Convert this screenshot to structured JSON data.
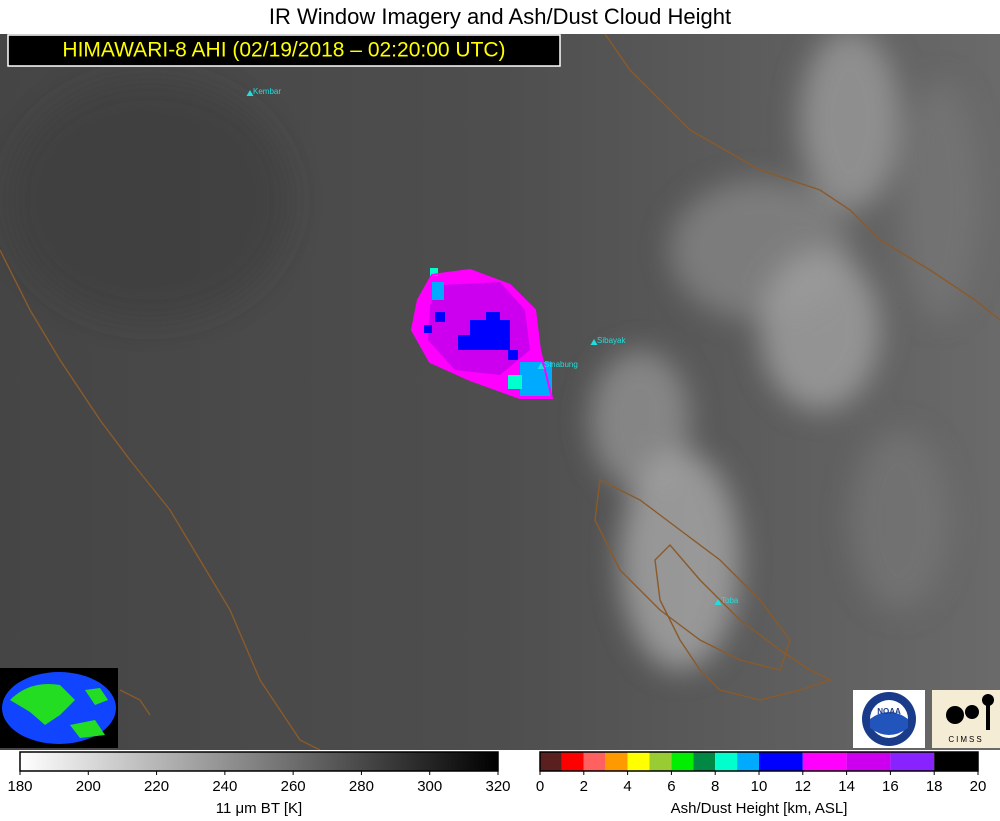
{
  "header": {
    "title": "IR Window Imagery and Ash/Dust Cloud Height",
    "subtitle": "HIMAWARI-8 AHI (02/19/2018 – 02:20:00 UTC)"
  },
  "volcanoes": [
    {
      "name": "Kembar"
    },
    {
      "name": "Sibayak"
    },
    {
      "name": "Sinabung"
    },
    {
      "name": "Toba"
    }
  ],
  "bt_colorbar": {
    "label": "11 μm BT [K]",
    "range": [
      180,
      320
    ],
    "ticks": [
      180,
      200,
      220,
      240,
      260,
      280,
      300,
      320
    ]
  },
  "ash_colorbar": {
    "label": "Ash/Dust Height [km, ASL]",
    "range": [
      0,
      20
    ],
    "ticks": [
      0,
      2,
      4,
      6,
      8,
      10,
      12,
      14,
      16,
      18,
      20
    ],
    "bins": [
      0,
      1,
      2,
      3,
      4,
      5,
      6,
      7,
      8,
      9,
      10,
      12,
      14,
      16,
      18,
      20
    ],
    "colors": [
      "#5a2020",
      "#ff0000",
      "#ff6060",
      "#ff9900",
      "#ffff00",
      "#99cc33",
      "#00ee00",
      "#008844",
      "#00ffcc",
      "#00aaff",
      "#0000ff",
      "#ff00ff",
      "#cc00ee",
      "#8822ff",
      "#000000"
    ]
  },
  "logos": {
    "noaa": "NOAA",
    "cimss": "CIMSS"
  }
}
